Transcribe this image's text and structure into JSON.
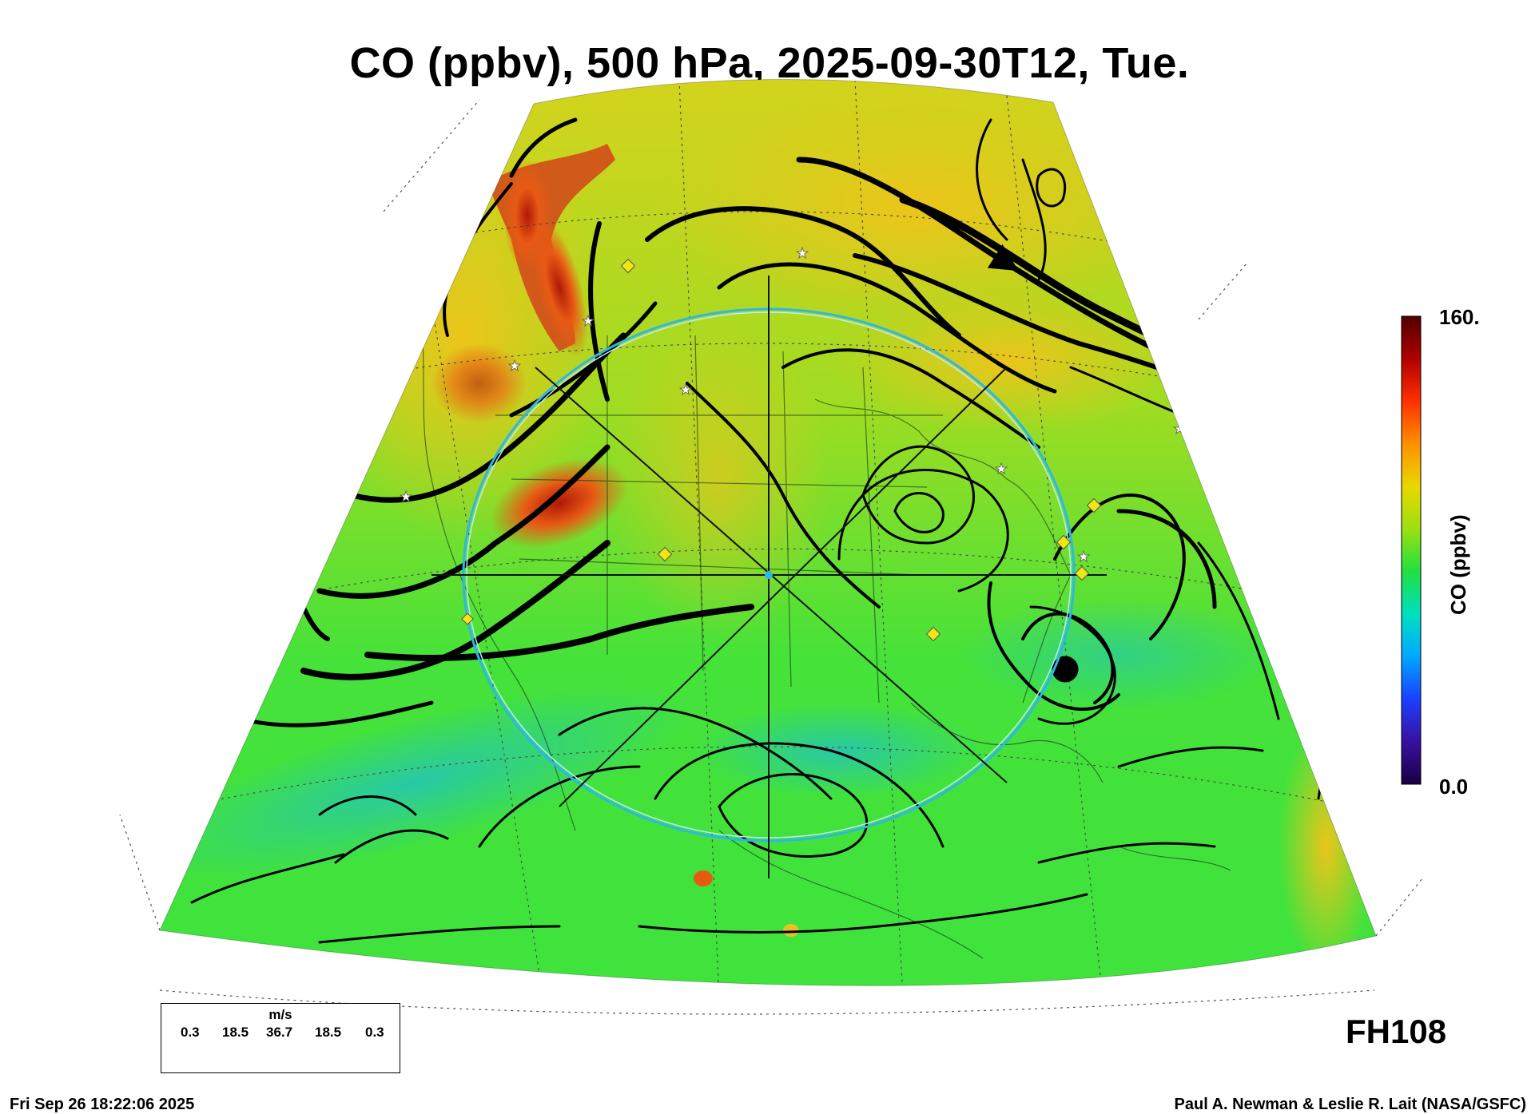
{
  "title": "CO (ppbv), 500 hPa, 2025-09-30T12, Tue.",
  "colorbar": {
    "max_label": "160.",
    "min_label": "0.0",
    "axis_label": "CO (ppbv)",
    "stops": [
      "#1a0040",
      "#3a10a0",
      "#1a40ff",
      "#00a8ff",
      "#00e0c0",
      "#20e040",
      "#9ce010",
      "#e8d800",
      "#ff9000",
      "#ff3000",
      "#b00000",
      "#500000"
    ]
  },
  "wind_legend": {
    "units": "m/s",
    "ticks": [
      "0.3",
      "18.5",
      "36.7",
      "18.5",
      "0.3"
    ]
  },
  "forecast_hour": "FH108",
  "timestamp": "Fri Sep 26 18:22:06 2025",
  "credit": "Paul A. Newman & Leslie R. Lait (NASA/GSFC)",
  "field_colors": {
    "background_green": "#3de33d",
    "high_co": "#e8c21e",
    "plume": "#c8301a",
    "low_co": "#22c8a0",
    "streamline": "#000000",
    "target_ring": "#2fb6e6"
  }
}
